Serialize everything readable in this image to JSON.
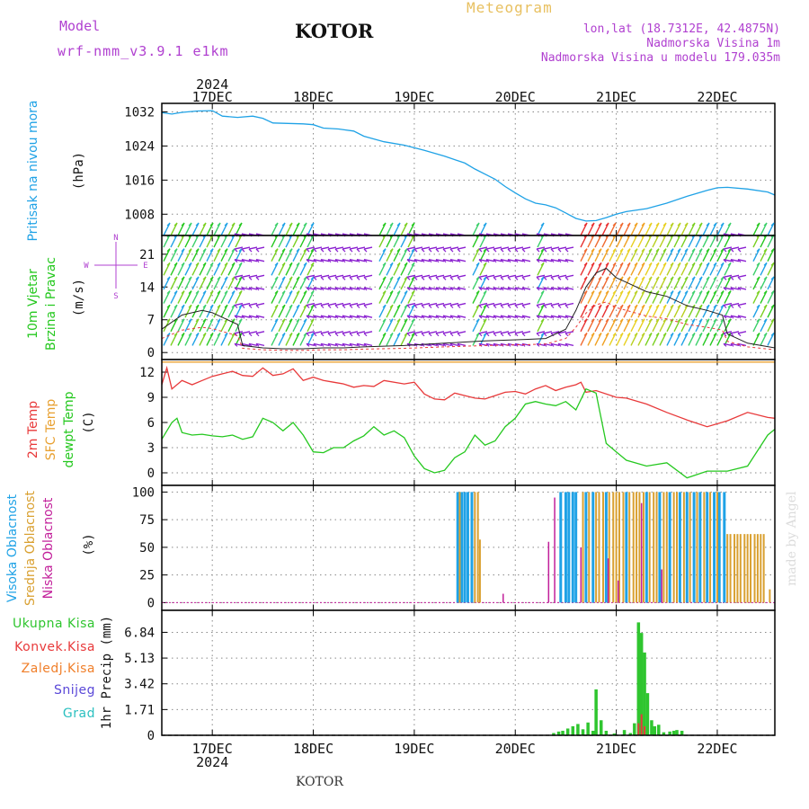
{
  "header": {
    "model_label": "Model",
    "model_name": "wrf-nmm_v3.9.1  e1km",
    "location": "KOTOR",
    "meteogram": "Meteogram",
    "lonlat": "lon,lat (18.7312E, 42.4875N)",
    "elevation": "Nadmorska Visina 1m",
    "model_elevation": "Nadmorska Visina u modelu 179.035m",
    "credit": "made by Angel",
    "footer_location": "KOTOR"
  },
  "time_axis": {
    "year": "2024",
    "day_labels": [
      "17DEC",
      "18DEC",
      "19DEC",
      "20DEC",
      "21DEC",
      "22DEC"
    ],
    "day_positions": [
      0.5,
      1.5,
      2.5,
      3.5,
      4.5,
      5.5
    ],
    "range": [
      0,
      6.07
    ]
  },
  "colors": {
    "pressure": "#1fa2e6",
    "t2m": "#e8393a",
    "sfc": "#e8a030",
    "dewpoint": "#25c81f",
    "high_cloud": "#1fa2e6",
    "mid_cloud": "#d9a030",
    "low_cloud": "#c21f9a",
    "precip_total": "#2fc52f",
    "precip_conv": "#e8393a",
    "precip_frz": "#f07f2a",
    "snow": "#5a48d8",
    "graupel": "#2bc0c0",
    "wind_calm": "#8a1fd0"
  },
  "chart_data": [
    {
      "type": "line",
      "panel": "pressure",
      "title_lines": [
        "Pritisak na nivou mora"
      ],
      "unit": "(hPa)",
      "yticks": [
        1008,
        1016,
        1024,
        1032
      ],
      "ylim": [
        1003,
        1034
      ],
      "grid": true,
      "series": [
        {
          "x": [
            0,
            0.1,
            0.2,
            0.35,
            0.5,
            0.6,
            0.75,
            0.9,
            1.0,
            1.1,
            1.25,
            1.4,
            1.5,
            1.6,
            1.75,
            1.9,
            2.0,
            2.2,
            2.4,
            2.6,
            2.8,
            3.0,
            3.1,
            3.2,
            3.3,
            3.4,
            3.5,
            3.6,
            3.7,
            3.8,
            3.9,
            4.0,
            4.1,
            4.2,
            4.3,
            4.4,
            4.5,
            4.6,
            4.8,
            5.0,
            5.2,
            5.4,
            5.5,
            5.6,
            5.8,
            6.0,
            6.07
          ],
          "y": [
            1031.8,
            1031.5,
            1031.9,
            1032.2,
            1032.3,
            1031.0,
            1030.7,
            1031.0,
            1030.5,
            1029.4,
            1029.3,
            1029.2,
            1029.0,
            1028.2,
            1028.0,
            1027.5,
            1026.3,
            1025.0,
            1024.2,
            1023.0,
            1021.6,
            1020.0,
            1018.6,
            1017.4,
            1016.2,
            1014.5,
            1013.0,
            1011.6,
            1010.6,
            1010.2,
            1009.5,
            1008.3,
            1007.0,
            1006.4,
            1006.5,
            1007.2,
            1008.0,
            1008.6,
            1009.3,
            1010.6,
            1012.2,
            1013.6,
            1014.2,
            1014.3,
            1013.9,
            1013.2,
            1012.5
          ]
        }
      ]
    },
    {
      "type": "scatter",
      "panel": "wind",
      "title_lines": [
        "10m Vjetar",
        "Brzina i Pravac"
      ],
      "unit": "(m/s)",
      "compass": "N S W E",
      "yticks": [
        0,
        7,
        14,
        21
      ],
      "ylim": [
        -1.5,
        25
      ],
      "grid": true,
      "wind_rows": [
        1.5,
        4.5,
        7.5,
        10.5,
        13.5,
        16.5,
        19.5,
        22.5,
        25
      ],
      "speed_series": {
        "x": [
          0,
          0.2,
          0.4,
          0.5,
          0.6,
          0.75,
          0.8,
          1.0,
          1.2,
          1.4,
          1.6,
          1.8,
          2.0,
          2.4,
          2.8,
          3.2,
          3.6,
          3.8,
          4.0,
          4.1,
          4.2,
          4.3,
          4.4,
          4.5,
          4.6,
          4.8,
          5.0,
          5.2,
          5.4,
          5.55,
          5.6,
          5.8,
          6.07
        ],
        "y": [
          5.0,
          8.0,
          9.0,
          8.5,
          7.5,
          6.0,
          1.5,
          1.0,
          0.8,
          0.8,
          1.0,
          1.0,
          1.2,
          1.5,
          2.0,
          2.5,
          2.8,
          3.0,
          5.0,
          9.0,
          14.0,
          17.0,
          18.0,
          16.0,
          15.0,
          13.0,
          12.0,
          10.0,
          9.0,
          8.0,
          4.0,
          2.0,
          1.0
        ]
      },
      "strong_windows": [
        [
          0,
          0.8
        ],
        [
          1.07,
          1.45
        ],
        [
          2.1,
          2.45
        ],
        [
          3.05,
          3.2
        ],
        [
          3.68,
          3.75
        ],
        [
          4.1,
          5.62
        ],
        [
          5.85,
          6.07
        ]
      ]
    },
    {
      "type": "line",
      "panel": "temperature",
      "title_lines": [
        "2m Temp",
        "SFC Temp",
        "dewpt Temp"
      ],
      "unit": "(C)",
      "yticks": [
        0,
        3,
        6,
        9,
        12
      ],
      "ylim": [
        -1.5,
        13.5
      ],
      "grid": true,
      "sfc_value": 13.2,
      "series": [
        {
          "name": "t2m",
          "x": [
            0,
            0.05,
            0.1,
            0.2,
            0.3,
            0.4,
            0.5,
            0.6,
            0.7,
            0.8,
            0.9,
            1.0,
            1.1,
            1.2,
            1.3,
            1.4,
            1.5,
            1.6,
            1.7,
            1.8,
            1.9,
            2.0,
            2.1,
            2.2,
            2.4,
            2.5,
            2.6,
            2.7,
            2.8,
            2.9,
            3.0,
            3.1,
            3.2,
            3.3,
            3.4,
            3.5,
            3.6,
            3.7,
            3.8,
            3.9,
            4.0,
            4.1,
            4.15,
            4.2,
            4.3,
            4.5,
            4.6,
            4.8,
            5.0,
            5.2,
            5.4,
            5.6,
            5.8,
            6.0,
            6.07
          ],
          "y": [
            10.5,
            12.5,
            10.0,
            11.0,
            10.5,
            11.0,
            11.5,
            11.8,
            12.1,
            11.6,
            11.5,
            12.5,
            11.6,
            11.8,
            12.4,
            11.0,
            11.4,
            11.0,
            10.8,
            10.6,
            10.2,
            10.4,
            10.3,
            11.0,
            10.6,
            10.8,
            9.4,
            8.8,
            8.7,
            9.5,
            9.2,
            8.9,
            8.8,
            9.2,
            9.6,
            9.7,
            9.4,
            10.0,
            10.4,
            9.8,
            10.2,
            10.5,
            10.8,
            9.6,
            9.8,
            9.0,
            8.9,
            8.2,
            7.2,
            6.3,
            5.5,
            6.2,
            7.2,
            6.6,
            6.5
          ]
        },
        {
          "name": "dewpoint",
          "x": [
            0,
            0.1,
            0.15,
            0.2,
            0.3,
            0.4,
            0.5,
            0.6,
            0.7,
            0.8,
            0.9,
            1.0,
            1.1,
            1.2,
            1.3,
            1.4,
            1.5,
            1.6,
            1.7,
            1.8,
            1.9,
            2.0,
            2.1,
            2.2,
            2.3,
            2.4,
            2.5,
            2.6,
            2.7,
            2.8,
            2.9,
            3.0,
            3.1,
            3.2,
            3.3,
            3.4,
            3.5,
            3.6,
            3.7,
            3.8,
            3.9,
            4.0,
            4.1,
            4.2,
            4.3,
            4.4,
            4.5,
            4.6,
            4.8,
            5.0,
            5.2,
            5.4,
            5.6,
            5.8,
            6.0,
            6.07
          ],
          "y": [
            4.0,
            6.0,
            6.5,
            4.8,
            4.5,
            4.6,
            4.4,
            4.3,
            4.5,
            4.0,
            4.3,
            6.5,
            6.0,
            5.0,
            6.0,
            4.5,
            2.5,
            2.4,
            3.0,
            3.0,
            3.8,
            4.4,
            5.5,
            4.5,
            5.0,
            4.2,
            2.0,
            0.5,
            0.0,
            0.3,
            1.8,
            2.5,
            4.5,
            3.3,
            3.8,
            5.5,
            6.5,
            8.2,
            8.5,
            8.2,
            8.0,
            8.5,
            7.5,
            10.0,
            9.5,
            3.5,
            2.5,
            1.5,
            0.8,
            1.2,
            -0.6,
            0.2,
            0.2,
            0.8,
            4.5,
            5.2
          ]
        }
      ]
    },
    {
      "type": "bar",
      "panel": "cloud",
      "title_lines": [
        "Visoka Oblacnost",
        "Srednja Oblacnost",
        "Niska Oblacnost"
      ],
      "unit": "(%)",
      "yticks": [
        0,
        25,
        50,
        75,
        100
      ],
      "ylim": [
        -7,
        106
      ],
      "grid": true,
      "high": [
        {
          "x": 2.93,
          "v": 100
        },
        {
          "x": 2.97,
          "v": 100
        },
        {
          "x": 3.0,
          "v": 100
        },
        {
          "x": 3.03,
          "v": 100
        },
        {
          "x": 3.07,
          "v": 100
        },
        {
          "x": 3.95,
          "v": 100
        },
        {
          "x": 4.0,
          "v": 100
        },
        {
          "x": 4.03,
          "v": 100
        },
        {
          "x": 4.07,
          "v": 100
        },
        {
          "x": 4.1,
          "v": 100
        },
        {
          "x": 4.2,
          "v": 100
        },
        {
          "x": 4.27,
          "v": 100
        },
        {
          "x": 4.4,
          "v": 100
        },
        {
          "x": 4.6,
          "v": 100
        },
        {
          "x": 4.8,
          "v": 100
        },
        {
          "x": 4.93,
          "v": 100
        },
        {
          "x": 5.03,
          "v": 100
        },
        {
          "x": 5.13,
          "v": 100
        },
        {
          "x": 5.2,
          "v": 100
        },
        {
          "x": 5.27,
          "v": 100
        },
        {
          "x": 5.33,
          "v": 100
        },
        {
          "x": 5.4,
          "v": 100
        },
        {
          "x": 5.47,
          "v": 100
        },
        {
          "x": 5.52,
          "v": 100
        },
        {
          "x": 5.57,
          "v": 100
        }
      ],
      "mid": [
        {
          "x": 2.95,
          "v": 100
        },
        {
          "x": 3.1,
          "v": 100
        },
        {
          "x": 3.13,
          "v": 100
        },
        {
          "x": 3.15,
          "v": 57
        },
        {
          "x": 4.17,
          "v": 100
        },
        {
          "x": 4.23,
          "v": 100
        },
        {
          "x": 4.3,
          "v": 100
        },
        {
          "x": 4.33,
          "v": 100
        },
        {
          "x": 4.37,
          "v": 100
        },
        {
          "x": 4.43,
          "v": 100
        },
        {
          "x": 4.47,
          "v": 100
        },
        {
          "x": 4.5,
          "v": 100
        },
        {
          "x": 4.53,
          "v": 100
        },
        {
          "x": 4.57,
          "v": 100
        },
        {
          "x": 4.63,
          "v": 100
        },
        {
          "x": 4.67,
          "v": 100
        },
        {
          "x": 4.7,
          "v": 100
        },
        {
          "x": 4.73,
          "v": 100
        },
        {
          "x": 4.77,
          "v": 100
        },
        {
          "x": 4.83,
          "v": 100
        },
        {
          "x": 4.87,
          "v": 100
        },
        {
          "x": 4.9,
          "v": 100
        },
        {
          "x": 4.97,
          "v": 100
        },
        {
          "x": 5.0,
          "v": 100
        },
        {
          "x": 5.07,
          "v": 100
        },
        {
          "x": 5.1,
          "v": 100
        },
        {
          "x": 5.17,
          "v": 100
        },
        {
          "x": 5.23,
          "v": 100
        },
        {
          "x": 5.3,
          "v": 100
        },
        {
          "x": 5.37,
          "v": 100
        },
        {
          "x": 5.43,
          "v": 100
        },
        {
          "x": 5.5,
          "v": 100
        },
        {
          "x": 5.6,
          "v": 62
        },
        {
          "x": 5.63,
          "v": 62
        },
        {
          "x": 5.67,
          "v": 62
        },
        {
          "x": 5.7,
          "v": 62
        },
        {
          "x": 5.73,
          "v": 62
        },
        {
          "x": 5.77,
          "v": 62
        },
        {
          "x": 5.8,
          "v": 62
        },
        {
          "x": 5.83,
          "v": 62
        },
        {
          "x": 5.87,
          "v": 62
        },
        {
          "x": 5.9,
          "v": 62
        },
        {
          "x": 5.93,
          "v": 62
        },
        {
          "x": 5.96,
          "v": 62
        },
        {
          "x": 6.02,
          "v": 12
        }
      ],
      "low": [
        {
          "x": 3.38,
          "v": 8
        },
        {
          "x": 3.83,
          "v": 55
        },
        {
          "x": 3.89,
          "v": 95
        },
        {
          "x": 4.15,
          "v": 50
        },
        {
          "x": 4.42,
          "v": 40
        },
        {
          "x": 4.52,
          "v": 20
        },
        {
          "x": 4.75,
          "v": 90
        },
        {
          "x": 4.95,
          "v": 30
        }
      ]
    },
    {
      "type": "bar",
      "panel": "precip",
      "legend": [
        "Ukupna Kisa",
        "Konvek.Kisa",
        "Zaledj.Kisa",
        "Snijeg",
        "Grad"
      ],
      "unit": "1hr Precip (mm)",
      "yticks": [
        0,
        1.71,
        3.42,
        5.13,
        6.84
      ],
      "ylim": [
        0,
        8.3
      ],
      "grid": true,
      "total": [
        {
          "x": 3.88,
          "v": 0.15
        },
        {
          "x": 3.93,
          "v": 0.25
        },
        {
          "x": 3.97,
          "v": 0.3
        },
        {
          "x": 4.02,
          "v": 0.45
        },
        {
          "x": 4.07,
          "v": 0.6
        },
        {
          "x": 4.12,
          "v": 0.75
        },
        {
          "x": 4.17,
          "v": 0.4
        },
        {
          "x": 4.22,
          "v": 0.85
        },
        {
          "x": 4.27,
          "v": 0.3
        },
        {
          "x": 4.3,
          "v": 3.05
        },
        {
          "x": 4.35,
          "v": 1.0
        },
        {
          "x": 4.4,
          "v": 0.3
        },
        {
          "x": 4.48,
          "v": 0.12
        },
        {
          "x": 4.58,
          "v": 0.35
        },
        {
          "x": 4.64,
          "v": 0.15
        },
        {
          "x": 4.68,
          "v": 0.8
        },
        {
          "x": 4.72,
          "v": 7.5
        },
        {
          "x": 4.75,
          "v": 6.8
        },
        {
          "x": 4.78,
          "v": 5.5
        },
        {
          "x": 4.81,
          "v": 2.8
        },
        {
          "x": 4.85,
          "v": 1.0
        },
        {
          "x": 4.88,
          "v": 0.6
        },
        {
          "x": 4.92,
          "v": 0.7
        },
        {
          "x": 4.97,
          "v": 0.2
        },
        {
          "x": 5.03,
          "v": 0.25
        },
        {
          "x": 5.07,
          "v": 0.3
        },
        {
          "x": 5.1,
          "v": 0.35
        },
        {
          "x": 5.15,
          "v": 0.3
        }
      ],
      "convective": [
        {
          "x": 4.72,
          "v": 0.8
        },
        {
          "x": 4.75,
          "v": 1.4
        },
        {
          "x": 4.78,
          "v": 0.6
        }
      ]
    }
  ]
}
